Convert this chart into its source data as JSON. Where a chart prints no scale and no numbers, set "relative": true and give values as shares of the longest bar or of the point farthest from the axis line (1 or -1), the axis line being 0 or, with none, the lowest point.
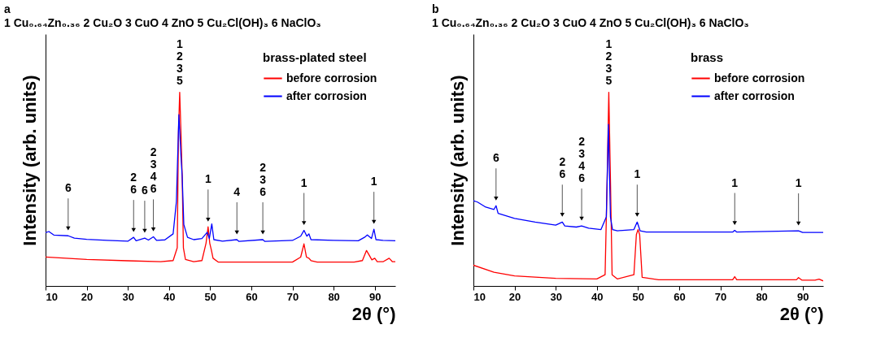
{
  "chart_data": [
    {
      "type": "line",
      "title": "a",
      "subtitle": "1 Cu₀.₆₄Zn₀.₃₆  2 Cu₂O  3  CuO  4 ZnO  5 Cu₂Cl(OH)₃  6 NaClO₃",
      "xlabel": "2θ (°)",
      "ylabel": "Intensity (arb. units)",
      "legend_title": "brass-plated steel",
      "legend": "top right",
      "relative": true,
      "xlim": [
        10,
        95
      ],
      "xticks": [
        10,
        20,
        30,
        40,
        50,
        60,
        70,
        80,
        90
      ],
      "series": [
        {
          "name": "before corrosion",
          "color": "#ff0000",
          "x": [
            10,
            15,
            20,
            30,
            38,
            41,
            42,
            42.3,
            42.6,
            42.9,
            43.2,
            43.5,
            44,
            46,
            48,
            49,
            49.5,
            49.9,
            50.3,
            50.7,
            52,
            60,
            70,
            72,
            72.8,
            73.4,
            74,
            74.5,
            76,
            85,
            87,
            88,
            88.6,
            89.3,
            90,
            90.6,
            92,
            93.5,
            94.3,
            95
          ],
          "values": [
            0.149,
            0.143,
            0.137,
            0.13,
            0.125,
            0.131,
            0.197,
            0.795,
            1.0,
            0.795,
            0.567,
            0.197,
            0.137,
            0.125,
            0.131,
            0.221,
            0.305,
            0.221,
            0.185,
            0.143,
            0.123,
            0.123,
            0.123,
            0.149,
            0.217,
            0.149,
            0.143,
            0.131,
            0.123,
            0.123,
            0.131,
            0.183,
            0.161,
            0.135,
            0.143,
            0.125,
            0.125,
            0.143,
            0.125,
            0.125
          ]
        },
        {
          "name": "after corrosion",
          "color": "#0000ff",
          "x": [
            10,
            10.8,
            12,
            15.5,
            17,
            20,
            25,
            30,
            31.4,
            32,
            34.1,
            35,
            36.2,
            37,
            39,
            41,
            41.8,
            42.4,
            42.9,
            43.2,
            43.6,
            44.5,
            46,
            48,
            49.3,
            49.8,
            50.4,
            50.9,
            53,
            56.5,
            57,
            62.8,
            63.3,
            70,
            72,
            72.8,
            73.5,
            74,
            74.5,
            80,
            86,
            87.5,
            88.2,
            89.2,
            89.8,
            90.3,
            92,
            95
          ],
          "values": [
            0.275,
            0.281,
            0.263,
            0.259,
            0.247,
            0.241,
            0.235,
            0.231,
            0.251,
            0.233,
            0.247,
            0.237,
            0.254,
            0.235,
            0.238,
            0.269,
            0.436,
            0.884,
            0.675,
            0.567,
            0.317,
            0.251,
            0.239,
            0.245,
            0.277,
            0.245,
            0.32,
            0.239,
            0.231,
            0.239,
            0.23,
            0.239,
            0.23,
            0.235,
            0.257,
            0.287,
            0.257,
            0.269,
            0.239,
            0.235,
            0.233,
            0.251,
            0.263,
            0.245,
            0.293,
            0.239,
            0.235,
            0.233
          ]
        }
      ],
      "annotations": [
        {
          "text": "6",
          "x": 15.5,
          "y": 0.259
        },
        {
          "text": "2\n6",
          "x": 31.4,
          "y": 0.251
        },
        {
          "text": "6",
          "x": 34.1,
          "y": 0.247
        },
        {
          "text": "2\n3\n4\n6",
          "x": 36.2,
          "y": 0.254
        },
        {
          "text": "1\n2\n3\n5",
          "x": 42.6,
          "y": 1.0
        },
        {
          "text": "1",
          "x": 49.5,
          "y": 0.305
        },
        {
          "text": "4",
          "x": 56.5,
          "y": 0.239
        },
        {
          "text": "2\n3\n6",
          "x": 62.8,
          "y": 0.239
        },
        {
          "text": "1",
          "x": 72.8,
          "y": 0.287
        },
        {
          "text": "1",
          "x": 89.8,
          "y": 0.293
        }
      ]
    },
    {
      "type": "line",
      "title": "b",
      "subtitle": "1 Cu₀.₆₄Zn₀.₃₆  2 Cu₂O  3  CuO  4 ZnO  5 Cu₂Cl(OH)₃  6 NaClO₃",
      "xlabel": "2θ (°)",
      "ylabel": "Intensity (arb. units)",
      "legend_title": "brass",
      "legend": "top right",
      "relative": true,
      "xlim": [
        10,
        95
      ],
      "xticks": [
        10,
        20,
        30,
        40,
        50,
        60,
        70,
        80,
        90
      ],
      "series": [
        {
          "name": "before corrosion",
          "color": "#ff0000",
          "x": [
            10,
            15,
            20,
            30,
            40,
            42,
            42.5,
            42.9,
            43.3,
            43.7,
            45,
            49,
            49.6,
            50,
            50.4,
            51,
            55,
            73,
            73.5,
            74,
            88.5,
            89,
            89.8,
            93,
            94,
            95
          ],
          "values": [
            0.107,
            0.071,
            0.052,
            0.039,
            0.036,
            0.058,
            0.55,
            1.0,
            0.55,
            0.058,
            0.036,
            0.058,
            0.265,
            0.291,
            0.265,
            0.045,
            0.032,
            0.032,
            0.048,
            0.032,
            0.032,
            0.043,
            0.03,
            0.03,
            0.035,
            0.026
          ]
        },
        {
          "name": "after corrosion",
          "color": "#0000ff",
          "x": [
            10,
            11,
            13,
            15,
            15.5,
            16,
            20,
            25,
            30,
            31.6,
            32.2,
            35,
            36.3,
            38,
            41,
            42.3,
            42.8,
            43.3,
            43.8,
            45,
            49,
            49.8,
            50.5,
            52,
            73,
            73.5,
            74,
            89,
            90,
            95
          ],
          "values": [
            0.44,
            0.433,
            0.407,
            0.395,
            0.414,
            0.375,
            0.349,
            0.33,
            0.314,
            0.33,
            0.31,
            0.304,
            0.31,
            0.298,
            0.291,
            0.356,
            0.834,
            0.356,
            0.291,
            0.285,
            0.291,
            0.33,
            0.285,
            0.278,
            0.278,
            0.287,
            0.278,
            0.285,
            0.276,
            0.276
          ]
        }
      ],
      "annotations": [
        {
          "text": "6",
          "x": 15.5,
          "y": 0.414
        },
        {
          "text": "2\n6",
          "x": 31.6,
          "y": 0.33
        },
        {
          "text": "2\n3\n4\n6",
          "x": 36.3,
          "y": 0.31
        },
        {
          "text": "1\n2\n3\n5",
          "x": 42.9,
          "y": 1.0
        },
        {
          "text": "1",
          "x": 49.8,
          "y": 0.33
        },
        {
          "text": "1",
          "x": 73.5,
          "y": 0.287
        },
        {
          "text": "1",
          "x": 89,
          "y": 0.285
        }
      ]
    }
  ]
}
